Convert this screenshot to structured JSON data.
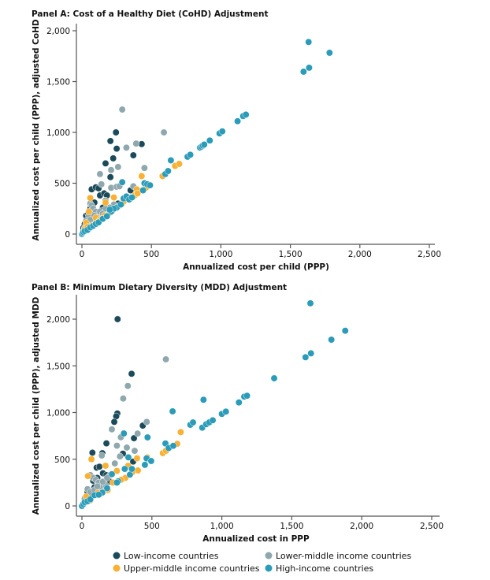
{
  "chart_data": [
    {
      "type": "scatter",
      "title": "Panel A: Cost of a Healthy Diet (CoHD) Adjustment",
      "xlabel": "Annualized cost per child (PPP)",
      "ylabel": "Annualized cost per child (PPP), adjusted CoHD",
      "xlim": [
        0,
        2500
      ],
      "ylim": [
        0,
        2000
      ],
      "xticks": [
        0,
        500,
        1000,
        1500,
        2000,
        2500
      ],
      "xtick_labels": [
        "0",
        "500",
        "1,000",
        "1,500",
        "2,000",
        "2,500"
      ],
      "yticks": [
        0,
        500,
        1000,
        1500,
        2000
      ],
      "ytick_labels": [
        "0",
        "500",
        "1,000",
        "1,500",
        "2,000"
      ],
      "grid": false,
      "series": [
        {
          "name": "Low-income countries",
          "color": "#1b4a5a",
          "points": [
            [
              30,
              180
            ],
            [
              45,
              200
            ],
            [
              60,
              250
            ],
            [
              70,
              440
            ],
            [
              80,
              290
            ],
            [
              90,
              310
            ],
            [
              100,
              460
            ],
            [
              110,
              200
            ],
            [
              120,
              450
            ],
            [
              130,
              380
            ],
            [
              150,
              260
            ],
            [
              160,
              400
            ],
            [
              170,
              695
            ],
            [
              180,
              380
            ],
            [
              205,
              915
            ],
            [
              205,
              560
            ],
            [
              225,
              745
            ],
            [
              245,
              1000
            ],
            [
              250,
              840
            ],
            [
              260,
              300
            ],
            [
              300,
              330
            ],
            [
              350,
              430
            ],
            [
              370,
              775
            ],
            [
              430,
              885
            ],
            [
              20,
              100
            ],
            [
              50,
              150
            ],
            [
              10,
              60
            ],
            [
              40,
              120
            ],
            [
              75,
              220
            ],
            [
              140,
              230
            ]
          ]
        },
        {
          "name": "Lower-middle income countries",
          "color": "#8fa8ad",
          "points": [
            [
              290,
              1225
            ],
            [
              590,
              1000
            ],
            [
              390,
              890
            ],
            [
              320,
              850
            ],
            [
              450,
              650
            ],
            [
              260,
              660
            ],
            [
              210,
              630
            ],
            [
              130,
              590
            ],
            [
              140,
              490
            ],
            [
              210,
              455
            ],
            [
              250,
              465
            ],
            [
              270,
              470
            ],
            [
              370,
              470
            ],
            [
              60,
              300
            ],
            [
              70,
              280
            ],
            [
              80,
              250
            ],
            [
              100,
              220
            ],
            [
              130,
              220
            ],
            [
              170,
              330
            ],
            [
              230,
              290
            ],
            [
              50,
              180
            ],
            [
              30,
              130
            ],
            [
              40,
              100
            ],
            [
              90,
              180
            ],
            [
              150,
              200
            ],
            [
              200,
              260
            ],
            [
              20,
              60
            ],
            [
              110,
              160
            ],
            [
              60,
              140
            ],
            [
              170,
              250
            ]
          ]
        },
        {
          "name": "Upper-middle income countries",
          "color": "#f8b133",
          "points": [
            [
              50,
              220
            ],
            [
              60,
              355
            ],
            [
              30,
              110
            ],
            [
              100,
              160
            ],
            [
              170,
              310
            ],
            [
              230,
              360
            ],
            [
              220,
              230
            ],
            [
              160,
              180
            ],
            [
              290,
              300
            ],
            [
              300,
              320
            ],
            [
              380,
              380
            ],
            [
              395,
              440
            ],
            [
              400,
              400
            ],
            [
              430,
              570
            ],
            [
              460,
              455
            ],
            [
              580,
              570
            ],
            [
              670,
              670
            ],
            [
              700,
              690
            ],
            [
              20,
              50
            ],
            [
              40,
              70
            ],
            [
              80,
              90
            ],
            [
              130,
              140
            ],
            [
              260,
              270
            ],
            [
              340,
              340
            ],
            [
              120,
              120
            ],
            [
              200,
              210
            ]
          ]
        },
        {
          "name": "High-income countries",
          "color": "#2a9bb8",
          "points": [
            [
              0,
              0
            ],
            [
              5,
              10
            ],
            [
              10,
              20
            ],
            [
              20,
              30
            ],
            [
              40,
              40
            ],
            [
              60,
              65
            ],
            [
              80,
              80
            ],
            [
              100,
              100
            ],
            [
              120,
              115
            ],
            [
              150,
              150
            ],
            [
              180,
              175
            ],
            [
              210,
              220
            ],
            [
              250,
              260
            ],
            [
              280,
              290
            ],
            [
              290,
              510
            ],
            [
              300,
              350
            ],
            [
              320,
              370
            ],
            [
              340,
              340
            ],
            [
              360,
              360
            ],
            [
              440,
              430
            ],
            [
              450,
              500
            ],
            [
              470,
              490
            ],
            [
              490,
              480
            ],
            [
              600,
              590
            ],
            [
              620,
              620
            ],
            [
              640,
              725
            ],
            [
              760,
              760
            ],
            [
              780,
              780
            ],
            [
              850,
              850
            ],
            [
              860,
              860
            ],
            [
              870,
              870
            ],
            [
              880,
              880
            ],
            [
              920,
              920
            ],
            [
              990,
              990
            ],
            [
              1010,
              1010
            ],
            [
              1120,
              1110
            ],
            [
              1160,
              1160
            ],
            [
              1180,
              1175
            ],
            [
              1595,
              1597
            ],
            [
              1631,
              1889
            ],
            [
              1635,
              1636
            ],
            [
              1782,
              1783
            ],
            [
              230,
              250
            ],
            [
              200,
              240
            ]
          ]
        }
      ]
    },
    {
      "type": "scatter",
      "title": "Panel B: Minimum Dietary Diversity (MDD) Adjustment",
      "xlabel": "Annualized cost in PPP",
      "ylabel": "Annualized cost per child (PPP), adjusted MDD",
      "xlim": [
        0,
        2500
      ],
      "ylim": [
        0,
        2000
      ],
      "xticks": [
        0,
        500,
        1000,
        1500,
        2000,
        2500
      ],
      "xtick_labels": [
        "0",
        "500",
        "1,000",
        "1,500",
        "2,000",
        "2,500"
      ],
      "yticks": [
        0,
        500,
        1000,
        1500,
        2000
      ],
      "ytick_labels": [
        "0",
        "500",
        "1,000",
        "1,500",
        "2,000"
      ],
      "grid": false,
      "series": [
        {
          "name": "Low-income countries",
          "color": "#1b4a5a",
          "points": [
            [
              255,
              2000
            ],
            [
              355,
              1415
            ],
            [
              253,
              990
            ],
            [
              245,
              960
            ],
            [
              231,
              900
            ],
            [
              435,
              860
            ],
            [
              372,
              725
            ],
            [
              175,
              670
            ],
            [
              75,
              570
            ],
            [
              146,
              565
            ],
            [
              293,
              560
            ],
            [
              366,
              475
            ],
            [
              105,
              410
            ],
            [
              125,
              420
            ],
            [
              150,
              350
            ],
            [
              60,
              330
            ],
            [
              175,
              330
            ],
            [
              200,
              260
            ],
            [
              80,
              270
            ],
            [
              110,
              300
            ],
            [
              40,
              150
            ],
            [
              70,
              120
            ],
            [
              30,
              80
            ],
            [
              90,
              200
            ],
            [
              160,
              220
            ],
            [
              20,
              60
            ]
          ]
        },
        {
          "name": "Lower-middle income countries",
          "color": "#8fa8ad",
          "points": [
            [
              600,
              1570
            ],
            [
              328,
              1285
            ],
            [
              295,
              1150
            ],
            [
              463,
              900
            ],
            [
              214,
              820
            ],
            [
              398,
              775
            ],
            [
              278,
              735
            ],
            [
              321,
              625
            ],
            [
              250,
              645
            ],
            [
              377,
              590
            ],
            [
              142,
              540
            ],
            [
              272,
              530
            ],
            [
              235,
              455
            ],
            [
              60,
              330
            ],
            [
              80,
              300
            ],
            [
              100,
              280
            ],
            [
              120,
              250
            ],
            [
              140,
              200
            ],
            [
              170,
              220
            ],
            [
              200,
              330
            ],
            [
              40,
              180
            ],
            [
              60,
              150
            ],
            [
              30,
              100
            ],
            [
              90,
              170
            ],
            [
              20,
              80
            ],
            [
              110,
              210
            ],
            [
              150,
              260
            ],
            [
              180,
              300
            ]
          ]
        },
        {
          "name": "Upper-middle income countries",
          "color": "#f8b133",
          "points": [
            [
              68,
              500
            ],
            [
              706,
              790
            ],
            [
              681,
              665
            ],
            [
              578,
              565
            ],
            [
              600,
              590
            ],
            [
              394,
              510
            ],
            [
              466,
              520
            ],
            [
              330,
              430
            ],
            [
              400,
              380
            ],
            [
              250,
              375
            ],
            [
              169,
              430
            ],
            [
              43,
              320
            ],
            [
              310,
              300
            ],
            [
              221,
              250
            ],
            [
              184,
              170
            ],
            [
              114,
              140
            ],
            [
              30,
              100
            ],
            [
              360,
              360
            ],
            [
              280,
              280
            ],
            [
              60,
              60
            ],
            [
              20,
              30
            ],
            [
              150,
              150
            ]
          ]
        },
        {
          "name": "High-income countries",
          "color": "#2a9bb8",
          "points": [
            [
              0,
              0
            ],
            [
              10,
              20
            ],
            [
              20,
              40
            ],
            [
              40,
              50
            ],
            [
              60,
              70
            ],
            [
              90,
              115
            ],
            [
              146,
              143
            ],
            [
              214,
              340
            ],
            [
              259,
              264
            ],
            [
              306,
              396
            ],
            [
              343,
              335
            ],
            [
              357,
              396
            ],
            [
              332,
              520
            ],
            [
              300,
              776
            ],
            [
              450,
              440
            ],
            [
              462,
              509
            ],
            [
              469,
              734
            ],
            [
              495,
              481
            ],
            [
              597,
              669
            ],
            [
              620,
              620
            ],
            [
              653,
              644
            ],
            [
              648,
              1013
            ],
            [
              775,
              869
            ],
            [
              794,
              894
            ],
            [
              860,
              838
            ],
            [
              869,
              1137
            ],
            [
              888,
              875
            ],
            [
              910,
              895
            ],
            [
              935,
              917
            ],
            [
              1000,
              985
            ],
            [
              1029,
              1010
            ],
            [
              1122,
              1108
            ],
            [
              1160,
              1170
            ],
            [
              1180,
              1180
            ],
            [
              1374,
              1367
            ],
            [
              1598,
              1592
            ],
            [
              1633,
              2170
            ],
            [
              1637,
              1634
            ],
            [
              1783,
              1780
            ],
            [
              1882,
              1876
            ],
            [
              120,
              120
            ],
            [
              180,
              190
            ],
            [
              250,
              250
            ]
          ]
        }
      ]
    }
  ],
  "legend": {
    "placement": "bottom",
    "items": [
      "Low-income countries",
      "Lower-middle income countries",
      "Upper-middle income countries",
      "High-income countries"
    ]
  }
}
